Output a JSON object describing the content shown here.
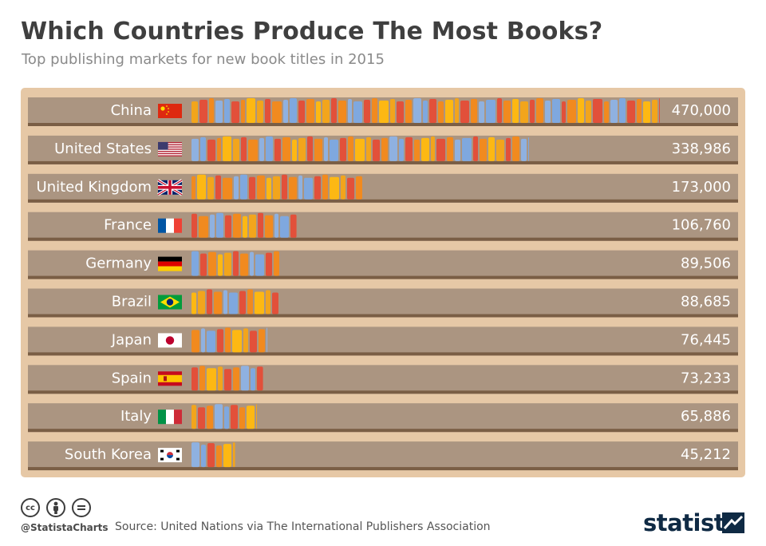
{
  "header": {
    "title": "Which Countries Produce The Most Books?",
    "subtitle": "Top publishing markets for new book titles in 2015"
  },
  "colors": {
    "background": "#ffffff",
    "panel": "#e6c8a6",
    "shelf": "#ab9581",
    "shelf_edge": "#7a5e45",
    "label": "#ffffff",
    "books": [
      "#e2503a",
      "#f18a1f",
      "#8fb1e0",
      "#f2a51c",
      "#e2503a",
      "#f18a1f",
      "#fdb813",
      "#7fa8df"
    ]
  },
  "chart_data": {
    "type": "bar",
    "title": "Which Countries Produce The Most Books?",
    "subtitle": "Top publishing markets for new book titles in 2015",
    "xlabel": "",
    "ylabel": "",
    "xlim": [
      0,
      470000
    ],
    "categories": [
      "China",
      "United States",
      "United Kingdom",
      "France",
      "Germany",
      "Brazil",
      "Japan",
      "Spain",
      "Italy",
      "South Korea"
    ],
    "flags": [
      "flag-china-icon",
      "flag-usa-icon",
      "flag-uk-icon",
      "flag-france-icon",
      "flag-germany-icon",
      "flag-brazil-icon",
      "flag-japan-icon",
      "flag-spain-icon",
      "flag-italy-icon",
      "flag-south-korea-icon"
    ],
    "values": [
      470000,
      338986,
      173000,
      106760,
      89506,
      88685,
      76445,
      73233,
      65886,
      45212
    ],
    "value_labels": [
      "470,000",
      "338,986",
      "173,000",
      "106,760",
      "89,506",
      "88,685",
      "76,445",
      "73,233",
      "65,886",
      "45,212"
    ]
  },
  "footer": {
    "handle": "@StatistaCharts",
    "source": "Source: United Nations via The International Publishers Association",
    "brand": "statista",
    "license_icons": [
      "cc-icon",
      "attribution-icon",
      "no-derivatives-icon"
    ]
  }
}
